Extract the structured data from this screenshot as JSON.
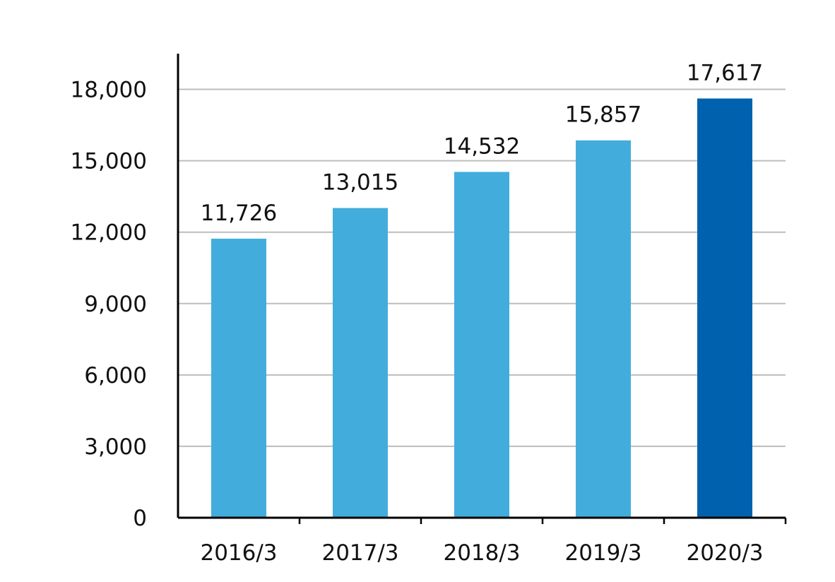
{
  "chart_data": {
    "type": "bar",
    "title": "",
    "xlabel": "",
    "ylabel": "",
    "categories": [
      "2016/3",
      "2017/3",
      "2018/3",
      "2019/3",
      "2020/3"
    ],
    "values": [
      11726,
      13015,
      14532,
      15857,
      17617
    ],
    "value_labels": [
      "11,726",
      "13,015",
      "14,532",
      "15,857",
      "17,617"
    ],
    "ylim": [
      0,
      19500
    ],
    "yticks": [
      0,
      3000,
      6000,
      9000,
      12000,
      15000,
      18000
    ],
    "ytick_labels": [
      "0",
      "3,000",
      "6,000",
      "9,000",
      "12,000",
      "15,000",
      "18,000"
    ],
    "grid": true,
    "legend": "none",
    "colors": {
      "bar": "#42ADDC",
      "highlight_bar": "#0062AF",
      "grid": "#BDBDBD",
      "axis": "#000000"
    },
    "highlight_index": 4
  }
}
